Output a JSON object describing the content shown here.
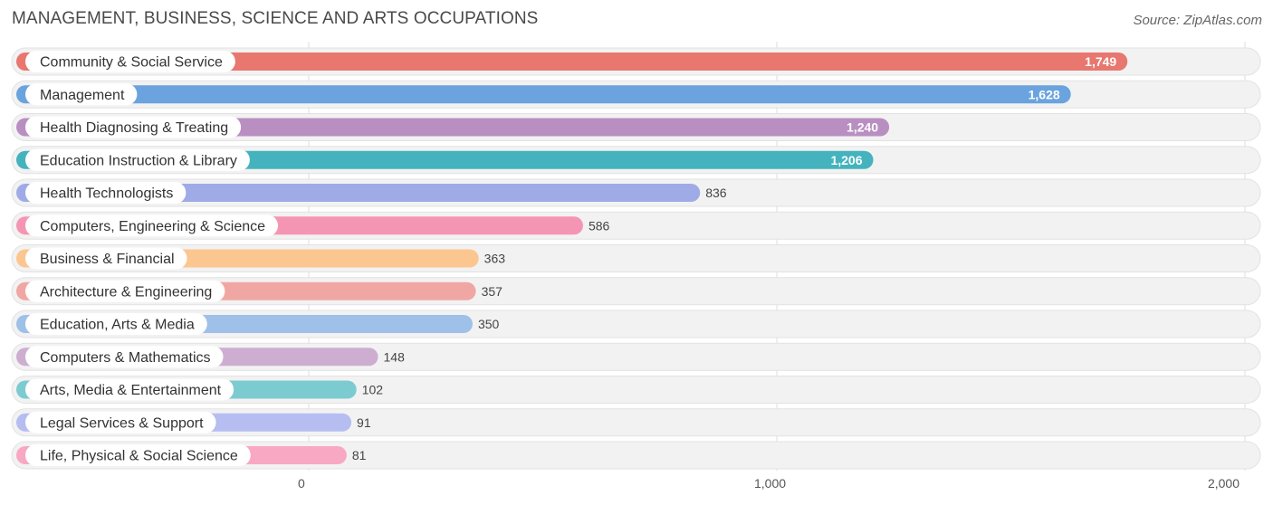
{
  "title": "MANAGEMENT, BUSINESS, SCIENCE AND ARTS OCCUPATIONS",
  "source": "Source: ZipAtlas.com",
  "chart_data": {
    "type": "bar",
    "orientation": "horizontal",
    "categories": [
      "Community & Social Service",
      "Management",
      "Health Diagnosing & Treating",
      "Education Instruction & Library",
      "Health Technologists",
      "Computers, Engineering & Science",
      "Business & Financial",
      "Architecture & Engineering",
      "Education, Arts & Media",
      "Computers & Mathematics",
      "Arts, Media & Entertainment",
      "Legal Services & Support",
      "Life, Physical & Social Science"
    ],
    "values": [
      1749,
      1628,
      1240,
      1206,
      836,
      586,
      363,
      357,
      350,
      148,
      102,
      91,
      81
    ],
    "value_labels": [
      "1,749",
      "1,628",
      "1,240",
      "1,206",
      "836",
      "586",
      "363",
      "357",
      "350",
      "148",
      "102",
      "91",
      "81"
    ],
    "colors": [
      "#e8776f",
      "#6aa3de",
      "#b98fc1",
      "#44b3bd",
      "#9eabe6",
      "#f595b4",
      "#fbc690",
      "#f0a7a3",
      "#9fc0e8",
      "#cdaed1",
      "#7ccbd0",
      "#b6bdf0",
      "#f8a8c3"
    ],
    "xlim": [
      0,
      2000
    ],
    "xticks": [
      0,
      1000,
      2000
    ],
    "xtick_labels": [
      "0",
      "1,000",
      "2,000"
    ],
    "grid": true
  }
}
